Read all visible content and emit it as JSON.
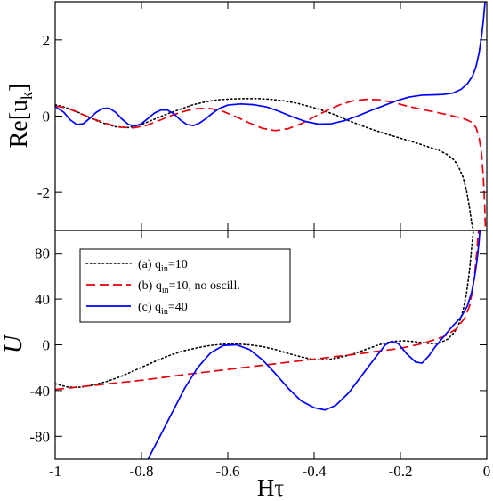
{
  "chart_data": [
    {
      "type": "line",
      "ylabel": "Re[u_k]",
      "ylabel_main": "Re[u",
      "ylabel_sub": "k",
      "ylabel_close": "]",
      "xlim": [
        -1,
        0
      ],
      "ylim": [
        -3,
        3
      ],
      "yticks": [
        -2,
        0,
        2
      ],
      "ytick_labels": [
        "-2",
        "0",
        "2"
      ],
      "grid": false,
      "series": [
        {
          "id": "a",
          "color": "#000000",
          "dash": "dotted",
          "points": [
            [
              -1,
              0.3
            ],
            [
              -0.98,
              0.24
            ],
            [
              -0.95,
              0.12
            ],
            [
              -0.92,
              -0.05
            ],
            [
              -0.89,
              -0.18
            ],
            [
              -0.86,
              -0.28
            ],
            [
              -0.83,
              -0.3
            ],
            [
              -0.8,
              -0.22
            ],
            [
              -0.77,
              -0.08
            ],
            [
              -0.74,
              0.06
            ],
            [
              -0.71,
              0.18
            ],
            [
              -0.68,
              0.3
            ],
            [
              -0.65,
              0.38
            ],
            [
              -0.62,
              0.43
            ],
            [
              -0.59,
              0.45
            ],
            [
              -0.56,
              0.46
            ],
            [
              -0.53,
              0.46
            ],
            [
              -0.5,
              0.44
            ],
            [
              -0.47,
              0.4
            ],
            [
              -0.44,
              0.34
            ],
            [
              -0.41,
              0.25
            ],
            [
              -0.38,
              0.15
            ],
            [
              -0.35,
              0.03
            ],
            [
              -0.32,
              -0.12
            ],
            [
              -0.29,
              -0.25
            ],
            [
              -0.26,
              -0.37
            ],
            [
              -0.23,
              -0.48
            ],
            [
              -0.2,
              -0.58
            ],
            [
              -0.17,
              -0.68
            ],
            [
              -0.14,
              -0.79
            ],
            [
              -0.11,
              -0.9
            ],
            [
              -0.09,
              -1.02
            ],
            [
              -0.075,
              -1.16
            ],
            [
              -0.065,
              -1.34
            ],
            [
              -0.055,
              -1.6
            ],
            [
              -0.047,
              -1.95
            ],
            [
              -0.04,
              -2.4
            ],
            [
              -0.035,
              -2.8
            ],
            [
              -0.031,
              -3.0
            ]
          ]
        },
        {
          "id": "b",
          "color": "#e8000b",
          "dash": "dashed",
          "points": [
            [
              -1,
              0.27
            ],
            [
              -0.97,
              0.2
            ],
            [
              -0.94,
              0.06
            ],
            [
              -0.91,
              -0.08
            ],
            [
              -0.88,
              -0.2
            ],
            [
              -0.85,
              -0.29
            ],
            [
              -0.82,
              -0.31
            ],
            [
              -0.79,
              -0.25
            ],
            [
              -0.76,
              -0.12
            ],
            [
              -0.73,
              0.02
            ],
            [
              -0.7,
              0.13
            ],
            [
              -0.67,
              0.2
            ],
            [
              -0.64,
              0.2
            ],
            [
              -0.61,
              0.12
            ],
            [
              -0.58,
              -0.02
            ],
            [
              -0.55,
              -0.18
            ],
            [
              -0.52,
              -0.32
            ],
            [
              -0.49,
              -0.38
            ],
            [
              -0.46,
              -0.33
            ],
            [
              -0.43,
              -0.2
            ],
            [
              -0.4,
              -0.02
            ],
            [
              -0.37,
              0.15
            ],
            [
              -0.34,
              0.3
            ],
            [
              -0.31,
              0.4
            ],
            [
              -0.28,
              0.44
            ],
            [
              -0.25,
              0.43
            ],
            [
              -0.22,
              0.37
            ],
            [
              -0.19,
              0.28
            ],
            [
              -0.16,
              0.2
            ],
            [
              -0.13,
              0.13
            ],
            [
              -0.1,
              0.06
            ],
            [
              -0.07,
              -0.02
            ],
            [
              -0.05,
              -0.08
            ],
            [
              -0.035,
              -0.16
            ],
            [
              -0.025,
              -0.3
            ],
            [
              -0.018,
              -0.55
            ],
            [
              -0.012,
              -1.0
            ],
            [
              -0.008,
              -1.6
            ],
            [
              -0.005,
              -2.3
            ],
            [
              -0.003,
              -3.0
            ]
          ]
        },
        {
          "id": "c",
          "color": "#0000ff",
          "dash": "solid",
          "points": [
            [
              -1,
              0.25
            ],
            [
              -0.98,
              0.1
            ],
            [
              -0.965,
              -0.1
            ],
            [
              -0.95,
              -0.22
            ],
            [
              -0.935,
              -0.2
            ],
            [
              -0.92,
              -0.06
            ],
            [
              -0.905,
              0.1
            ],
            [
              -0.89,
              0.2
            ],
            [
              -0.875,
              0.21
            ],
            [
              -0.86,
              0.1
            ],
            [
              -0.845,
              -0.08
            ],
            [
              -0.83,
              -0.22
            ],
            [
              -0.815,
              -0.26
            ],
            [
              -0.8,
              -0.2
            ],
            [
              -0.785,
              -0.06
            ],
            [
              -0.77,
              0.08
            ],
            [
              -0.755,
              0.16
            ],
            [
              -0.74,
              0.16
            ],
            [
              -0.725,
              0.06
            ],
            [
              -0.71,
              -0.1
            ],
            [
              -0.695,
              -0.22
            ],
            [
              -0.68,
              -0.25
            ],
            [
              -0.665,
              -0.18
            ],
            [
              -0.65,
              -0.06
            ],
            [
              -0.635,
              0.08
            ],
            [
              -0.62,
              0.2
            ],
            [
              -0.6,
              0.29
            ],
            [
              -0.57,
              0.32
            ],
            [
              -0.54,
              0.3
            ],
            [
              -0.51,
              0.24
            ],
            [
              -0.48,
              0.12
            ],
            [
              -0.45,
              -0.02
            ],
            [
              -0.42,
              -0.14
            ],
            [
              -0.39,
              -0.21
            ],
            [
              -0.36,
              -0.2
            ],
            [
              -0.33,
              -0.12
            ],
            [
              -0.3,
              0.0
            ],
            [
              -0.27,
              0.14
            ],
            [
              -0.24,
              0.27
            ],
            [
              -0.21,
              0.4
            ],
            [
              -0.18,
              0.5
            ],
            [
              -0.15,
              0.55
            ],
            [
              -0.12,
              0.56
            ],
            [
              -0.1,
              0.57
            ],
            [
              -0.08,
              0.6
            ],
            [
              -0.06,
              0.7
            ],
            [
              -0.045,
              0.85
            ],
            [
              -0.033,
              1.05
            ],
            [
              -0.025,
              1.3
            ],
            [
              -0.018,
              1.65
            ],
            [
              -0.012,
              2.1
            ],
            [
              -0.008,
              2.5
            ],
            [
              -0.004,
              3.0
            ]
          ]
        }
      ]
    },
    {
      "type": "line",
      "xlabel": "Hτ",
      "ylabel": "U",
      "xlim": [
        -1,
        0
      ],
      "ylim": [
        -100,
        100
      ],
      "xticks": [
        -1,
        -0.8,
        -0.6,
        -0.4,
        -0.2,
        0
      ],
      "xtick_labels": [
        "-1",
        "-0.8",
        "-0.6",
        "-0.4",
        "-0.2",
        "0"
      ],
      "yticks": [
        -80,
        -40,
        0,
        40,
        80
      ],
      "ytick_labels": [
        "-80",
        "-40",
        "0",
        "40",
        "80"
      ],
      "grid": false,
      "legend_placement": "top-left",
      "legend": [
        {
          "id": "a",
          "prefix": "(a) q",
          "sub": "in",
          "suffix": "=10",
          "color": "#000000",
          "dash": "dotted"
        },
        {
          "id": "b",
          "prefix": "(b) q",
          "sub": "in",
          "suffix": "=10, no oscill.",
          "color": "#e8000b",
          "dash": "dashed"
        },
        {
          "id": "c",
          "prefix": "(c) q",
          "sub": "in",
          "suffix": "=40",
          "color": "#0000ff",
          "dash": "solid"
        }
      ],
      "series": [
        {
          "id": "a",
          "color": "#000000",
          "dash": "dotted",
          "points": [
            [
              -1,
              -34
            ],
            [
              -0.97,
              -37
            ],
            [
              -0.94,
              -37
            ],
            [
              -0.91,
              -35
            ],
            [
              -0.88,
              -32
            ],
            [
              -0.85,
              -28
            ],
            [
              -0.82,
              -23
            ],
            [
              -0.79,
              -18
            ],
            [
              -0.76,
              -13
            ],
            [
              -0.73,
              -8.5
            ],
            [
              -0.7,
              -5
            ],
            [
              -0.67,
              -2.5
            ],
            [
              -0.64,
              -0.5
            ],
            [
              -0.61,
              0.5
            ],
            [
              -0.58,
              0.7
            ],
            [
              -0.55,
              0
            ],
            [
              -0.52,
              -1.5
            ],
            [
              -0.49,
              -4
            ],
            [
              -0.46,
              -7.5
            ],
            [
              -0.43,
              -10.5
            ],
            [
              -0.4,
              -13
            ],
            [
              -0.37,
              -13
            ],
            [
              -0.34,
              -11
            ],
            [
              -0.31,
              -8
            ],
            [
              -0.28,
              -4
            ],
            [
              -0.25,
              0
            ],
            [
              -0.22,
              3
            ],
            [
              -0.19,
              3.5
            ],
            [
              -0.16,
              2.5
            ],
            [
              -0.13,
              1
            ],
            [
              -0.11,
              1.5
            ],
            [
              -0.09,
              5
            ],
            [
              -0.075,
              11
            ],
            [
              -0.065,
              18
            ],
            [
              -0.055,
              30
            ],
            [
              -0.047,
              45
            ],
            [
              -0.04,
              65
            ],
            [
              -0.035,
              85
            ],
            [
              -0.031,
              100
            ]
          ]
        },
        {
          "id": "b",
          "color": "#e8000b",
          "dash": "dashed",
          "points": [
            [
              -1,
              -39
            ],
            [
              -0.9,
              -35
            ],
            [
              -0.8,
              -31
            ],
            [
              -0.7,
              -26
            ],
            [
              -0.6,
              -21.5
            ],
            [
              -0.5,
              -17
            ],
            [
              -0.4,
              -12.5
            ],
            [
              -0.3,
              -8
            ],
            [
              -0.2,
              -3
            ],
            [
              -0.15,
              1
            ],
            [
              -0.1,
              7
            ],
            [
              -0.07,
              14
            ],
            [
              -0.05,
              24
            ],
            [
              -0.04,
              34
            ],
            [
              -0.033,
              48
            ],
            [
              -0.028,
              62
            ],
            [
              -0.024,
              78
            ],
            [
              -0.021,
              92
            ],
            [
              -0.019,
              100
            ]
          ]
        },
        {
          "id": "c",
          "color": "#0000ff",
          "dash": "solid",
          "points": [
            [
              -0.785,
              -100
            ],
            [
              -0.76,
              -82
            ],
            [
              -0.73,
              -60
            ],
            [
              -0.7,
              -38
            ],
            [
              -0.67,
              -20
            ],
            [
              -0.64,
              -7
            ],
            [
              -0.61,
              -0.5
            ],
            [
              -0.58,
              0
            ],
            [
              -0.55,
              -4
            ],
            [
              -0.52,
              -13
            ],
            [
              -0.49,
              -25
            ],
            [
              -0.46,
              -38
            ],
            [
              -0.43,
              -49
            ],
            [
              -0.4,
              -55
            ],
            [
              -0.375,
              -57
            ],
            [
              -0.35,
              -53
            ],
            [
              -0.32,
              -42
            ],
            [
              -0.29,
              -27
            ],
            [
              -0.26,
              -12
            ],
            [
              -0.235,
              0
            ],
            [
              -0.22,
              3
            ],
            [
              -0.205,
              1
            ],
            [
              -0.185,
              -8
            ],
            [
              -0.165,
              -15
            ],
            [
              -0.15,
              -16
            ],
            [
              -0.135,
              -10
            ],
            [
              -0.12,
              -2
            ],
            [
              -0.1,
              7
            ],
            [
              -0.08,
              16
            ],
            [
              -0.06,
              24
            ],
            [
              -0.045,
              34
            ],
            [
              -0.035,
              46
            ],
            [
              -0.028,
              60
            ],
            [
              -0.022,
              76
            ],
            [
              -0.018,
              90
            ],
            [
              -0.016,
              100
            ]
          ]
        }
      ]
    }
  ]
}
